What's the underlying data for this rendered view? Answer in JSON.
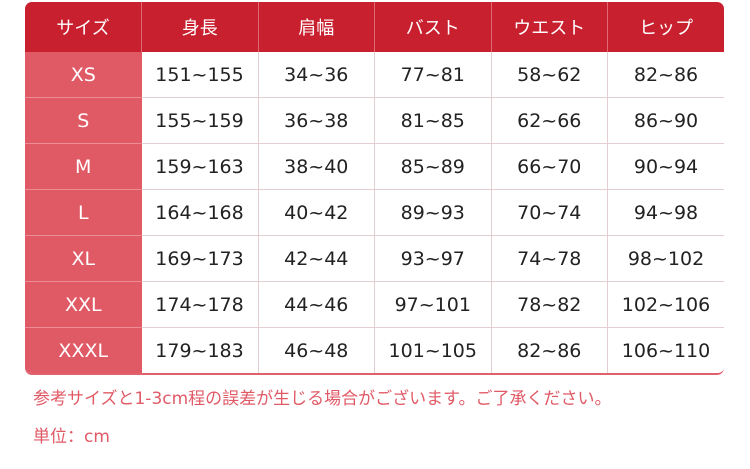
{
  "table": {
    "headers": [
      "サイズ",
      "身長",
      "肩幅",
      "バスト",
      "ウエスト",
      "ヒップ"
    ],
    "rows": [
      [
        "XS",
        "151~155",
        "34~36",
        "77~81",
        "58~62",
        "82~86"
      ],
      [
        "S",
        "155~159",
        "36~38",
        "81~85",
        "62~66",
        "86~90"
      ],
      [
        "M",
        "159~163",
        "38~40",
        "85~89",
        "66~70",
        "90~94"
      ],
      [
        "L",
        "164~168",
        "40~42",
        "89~93",
        "70~74",
        "94~98"
      ],
      [
        "XL",
        "169~173",
        "42~44",
        "93~97",
        "74~78",
        "98~102"
      ],
      [
        "XXL",
        "174~178",
        "44~46",
        "97~101",
        "78~82",
        "102~106"
      ],
      [
        "XXXL",
        "179~183",
        "46~48",
        "101~105",
        "82~86",
        "106~110"
      ]
    ]
  },
  "notes": {
    "disclaimer": "参考サイズと1-3cm程の誤差が生じる場合がございます。ご了承ください。",
    "unit": "単位：cm"
  },
  "colors": {
    "header": "#c8202f",
    "size_column": "#e05a66",
    "note_text": "#e05a66"
  }
}
